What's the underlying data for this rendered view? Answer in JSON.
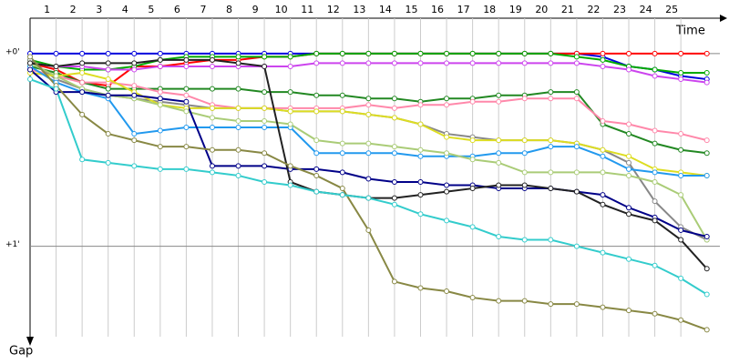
{
  "chart_data": {
    "type": "line",
    "x_label": "Time",
    "y_label": "Gap",
    "x": [
      0,
      1,
      2,
      3,
      4,
      5,
      6,
      7,
      8,
      9,
      10,
      11,
      12,
      13,
      14,
      15,
      16,
      17,
      18,
      19,
      20,
      21,
      22,
      23,
      24,
      25,
      26
    ],
    "xlim": [
      0,
      26.5
    ],
    "xticks": [
      1,
      2,
      3,
      4,
      5,
      6,
      7,
      8,
      9,
      10,
      11,
      12,
      13,
      14,
      15,
      16,
      17,
      18,
      19,
      20,
      21,
      22,
      23,
      24,
      25
    ],
    "ylim": [
      -11,
      91
    ],
    "yticks": [
      {
        "value": 0,
        "label": "+0'"
      },
      {
        "value": 60,
        "label": "+1'"
      }
    ],
    "grid": true,
    "series": [
      {
        "color": "#0000dd",
        "values": [
          0,
          0,
          0,
          0,
          0,
          0,
          0,
          0,
          0,
          0,
          0,
          0,
          0,
          0,
          0,
          0,
          0,
          0,
          0,
          0,
          0,
          0,
          1,
          4,
          5,
          7,
          8
        ]
      },
      {
        "color": "#ff0000",
        "values": [
          3,
          5,
          9,
          10,
          4,
          4,
          3,
          2,
          2,
          1,
          1,
          0,
          0,
          0,
          0,
          0,
          0,
          0,
          0,
          0,
          0,
          0,
          0,
          0,
          0,
          0,
          0
        ]
      },
      {
        "color": "#00aa00",
        "values": [
          2,
          4,
          5,
          5,
          4,
          2,
          1,
          1,
          1,
          1,
          1,
          0,
          0,
          0,
          0,
          0,
          0,
          0,
          0,
          0,
          0,
          1,
          2,
          4,
          5,
          6,
          6
        ]
      },
      {
        "color": "#cc44ee",
        "values": [
          3,
          4,
          4,
          5,
          5,
          4,
          4,
          4,
          4,
          4,
          4,
          3,
          3,
          3,
          3,
          3,
          3,
          3,
          3,
          3,
          3,
          3,
          4,
          5,
          7,
          8,
          9
        ]
      },
      {
        "color": "#228822",
        "values": [
          4,
          6,
          9,
          11,
          11,
          11,
          11,
          11,
          11,
          12,
          12,
          13,
          13,
          14,
          14,
          15,
          14,
          14,
          13,
          13,
          12,
          12,
          22,
          25,
          28,
          30,
          31
        ]
      },
      {
        "color": "#ff88aa",
        "values": [
          5,
          7,
          9,
          9,
          10,
          12,
          13,
          16,
          17,
          17,
          17,
          17,
          17,
          16,
          17,
          16,
          16,
          15,
          15,
          14,
          14,
          14,
          21,
          22,
          24,
          25,
          27
        ]
      },
      {
        "color": "#888888",
        "values": [
          2,
          8,
          11,
          13,
          14,
          15,
          16,
          17,
          17,
          17,
          18,
          18,
          18,
          19,
          20,
          22,
          25,
          26,
          27,
          27,
          27,
          28,
          30,
          34,
          46,
          54,
          58
        ]
      },
      {
        "color": "#dddd22",
        "values": [
          6,
          7,
          6,
          8,
          12,
          16,
          17,
          17,
          17,
          17,
          18,
          18,
          18,
          19,
          20,
          22,
          26,
          27,
          27,
          27,
          27,
          28,
          30,
          32,
          36,
          37,
          38
        ]
      },
      {
        "color": "#2299ee",
        "values": [
          4,
          9,
          12,
          14,
          25,
          24,
          23,
          23,
          23,
          23,
          23,
          31,
          31,
          31,
          31,
          32,
          32,
          32,
          31,
          31,
          29,
          29,
          32,
          36,
          37,
          38,
          38
        ]
      },
      {
        "color": "#aacc77",
        "values": [
          3,
          7,
          11,
          13,
          14,
          16,
          18,
          20,
          21,
          21,
          22,
          27,
          28,
          28,
          29,
          30,
          31,
          33,
          34,
          37,
          37,
          37,
          37,
          38,
          40,
          44,
          58
        ]
      },
      {
        "color": "#000088",
        "values": [
          5,
          12,
          12,
          13,
          13,
          14,
          15,
          35,
          35,
          35,
          36,
          36,
          37,
          39,
          40,
          40,
          41,
          41,
          42,
          42,
          42,
          43,
          44,
          48,
          51,
          55,
          57
        ]
      },
      {
        "color": "#222222",
        "values": [
          3,
          4,
          3,
          3,
          3,
          2,
          2,
          2,
          3,
          4,
          40,
          43,
          44,
          45,
          45,
          44,
          43,
          42,
          41,
          41,
          42,
          43,
          47,
          50,
          52,
          58,
          67
        ]
      },
      {
        "color": "#888844",
        "values": [
          1,
          10,
          19,
          25,
          27,
          29,
          29,
          30,
          30,
          31,
          35,
          38,
          42,
          55,
          71,
          73,
          74,
          76,
          77,
          77,
          78,
          78,
          79,
          80,
          81,
          83,
          86
        ]
      },
      {
        "color": "#33cccc",
        "values": [
          8,
          11,
          33,
          34,
          35,
          36,
          36,
          37,
          38,
          40,
          41,
          43,
          44,
          45,
          47,
          50,
          52,
          54,
          57,
          58,
          58,
          60,
          62,
          64,
          66,
          70,
          75
        ]
      }
    ]
  }
}
